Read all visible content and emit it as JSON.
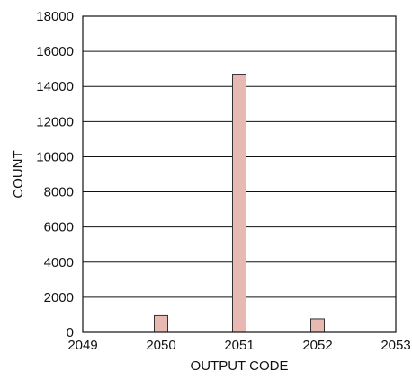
{
  "chart_data": {
    "type": "bar",
    "xlabel": "OUTPUT CODE",
    "ylabel": "COUNT",
    "xlim": [
      2049,
      2053
    ],
    "ylim": [
      0,
      18000
    ],
    "x_ticks": [
      "2049",
      "2050",
      "2051",
      "2052",
      "2053"
    ],
    "y_ticks": [
      "0",
      "2000",
      "4000",
      "6000",
      "8000",
      "10000",
      "12000",
      "14000",
      "16000",
      "18000"
    ],
    "categories": [
      2050,
      2051,
      2052
    ],
    "values": [
      950,
      14700,
      770
    ],
    "grid": "horizontal",
    "bar_color": "#e8b9b2",
    "bar_edge_color": "#333333"
  }
}
